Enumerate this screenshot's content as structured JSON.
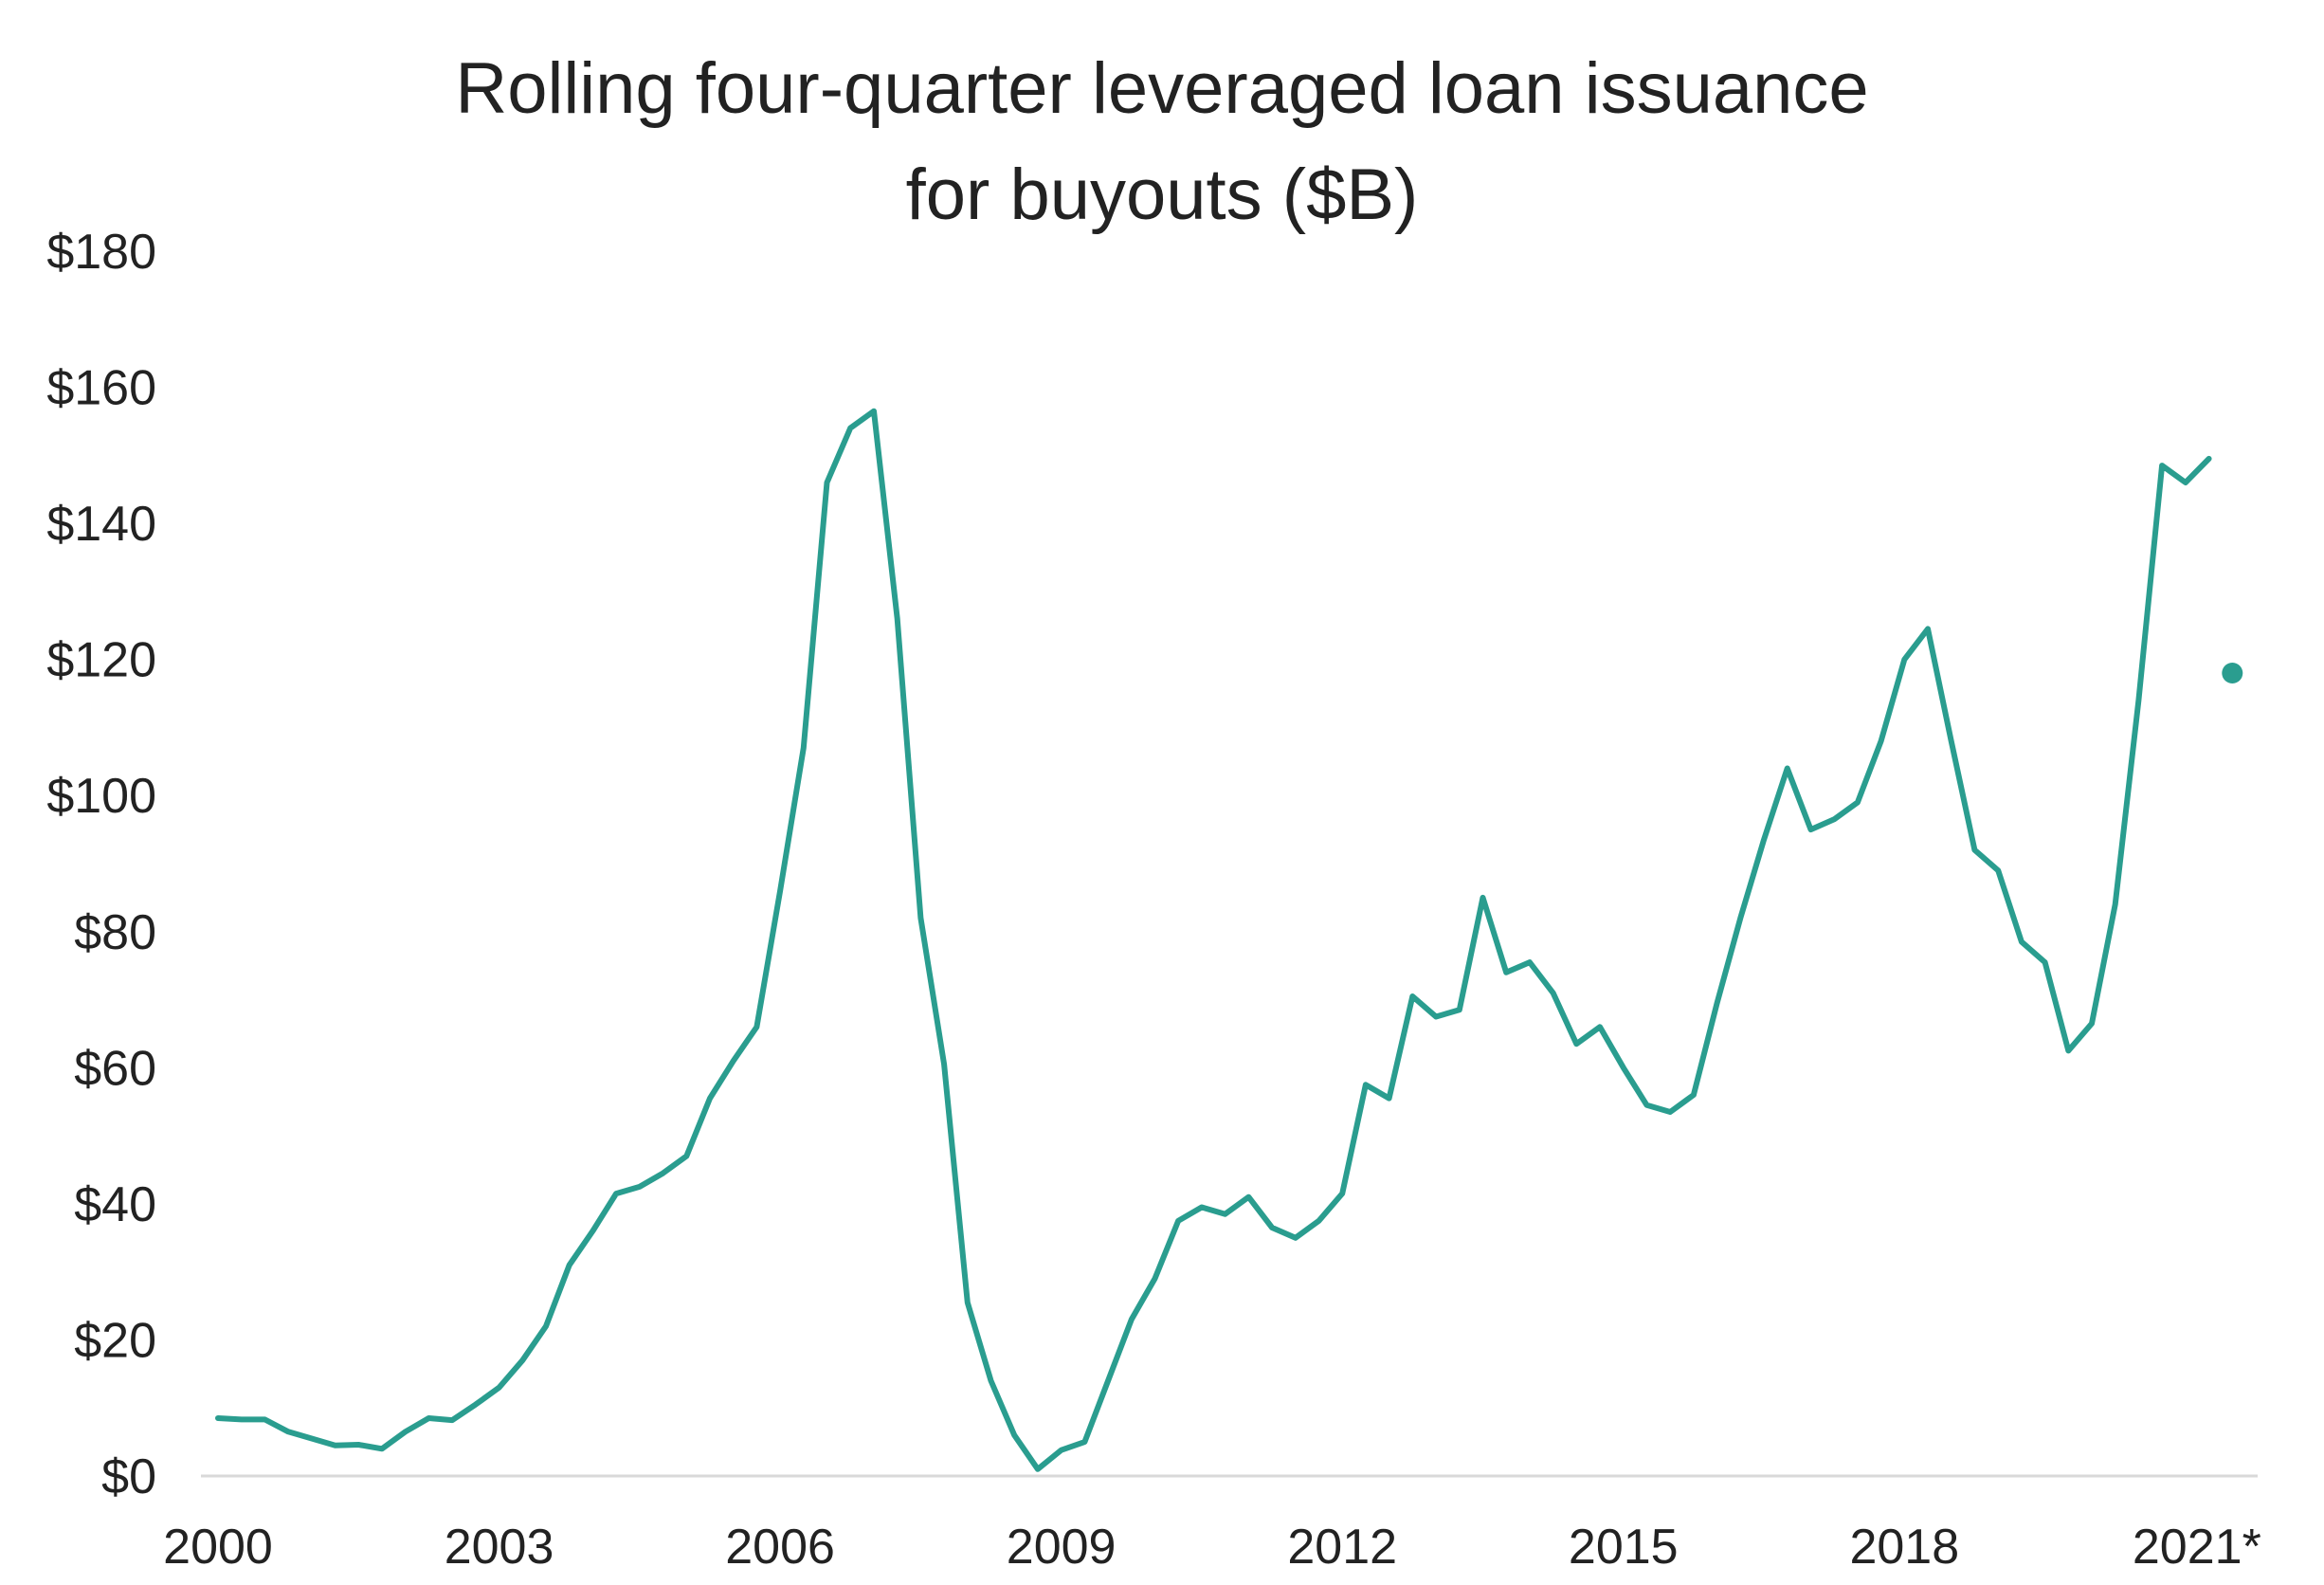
{
  "chart_data": {
    "type": "line",
    "title_lines": [
      "Rolling four-quarter leveraged loan issuance",
      "for buyouts ($B)"
    ],
    "xlabel": "",
    "ylabel": "",
    "ylim": [
      0,
      180
    ],
    "xlim": [
      2000,
      2021.75
    ],
    "y_ticks": [
      0,
      20,
      40,
      60,
      80,
      100,
      120,
      140,
      160,
      180
    ],
    "y_tick_labels": [
      "$0",
      "$20",
      "$40",
      "$60",
      "$80",
      "$100",
      "$120",
      "$140",
      "$160",
      "$180"
    ],
    "x_ticks": [
      2000,
      2003,
      2006,
      2009,
      2012,
      2015,
      2018,
      2021
    ],
    "x_tick_labels": [
      "2000",
      "2003",
      "2006",
      "2009",
      "2012",
      "2015",
      "2018",
      "2021*"
    ],
    "grid": false,
    "color": "#2a9d8f",
    "series": [
      {
        "x": [
          2000.0,
          2000.25,
          2000.5,
          2000.75,
          2001.0,
          2001.25,
          2001.5,
          2001.75,
          2002.0,
          2002.25,
          2002.5,
          2002.75,
          2003.0,
          2003.25,
          2003.5,
          2003.75,
          2004.0,
          2004.25,
          2004.5,
          2004.75,
          2005.0,
          2005.25,
          2005.5,
          2005.75,
          2006.0,
          2006.25,
          2006.5,
          2006.75,
          2007.0,
          2007.25,
          2007.5,
          2007.75,
          2008.0,
          2008.25,
          2008.5,
          2008.75,
          2009.0,
          2009.25,
          2009.5,
          2009.75,
          2010.0,
          2010.25,
          2010.5,
          2010.75,
          2011.0,
          2011.25,
          2011.5,
          2011.75,
          2012.0,
          2012.25,
          2012.5,
          2012.75,
          2013.0,
          2013.25,
          2013.5,
          2013.75,
          2014.0,
          2014.25,
          2014.5,
          2014.75,
          2015.0,
          2015.25,
          2015.5,
          2015.75,
          2016.0,
          2016.25,
          2016.5,
          2016.75,
          2017.0,
          2017.25,
          2017.5,
          2017.75,
          2018.0,
          2018.25,
          2018.5,
          2018.75,
          2019.0,
          2019.25,
          2019.5,
          2019.75,
          2020.0,
          2020.25,
          2020.5,
          2020.75,
          2021.0,
          2021.25
        ],
        "values": [
          8.5,
          8.3,
          8.3,
          6.5,
          5.5,
          4.5,
          4.6,
          4.0,
          6.5,
          8.5,
          8.2,
          10.5,
          13.0,
          17.0,
          22.0,
          31.0,
          36.0,
          41.5,
          42.5,
          44.5,
          47.0,
          55.5,
          61.0,
          66.0,
          86.0,
          107.0,
          146.0,
          154.0,
          156.5,
          126.0,
          82.0,
          60.5,
          25.5,
          14.0,
          6.0,
          1.0,
          3.8,
          5.0,
          14.0,
          23.0,
          29.0,
          37.5,
          39.5,
          38.5,
          41.0,
          36.5,
          35.0,
          37.5,
          41.5,
          57.5,
          55.5,
          70.5,
          67.5,
          68.5,
          85.0,
          74.0,
          75.5,
          71.0,
          63.5,
          66.0,
          60.0,
          54.5,
          53.5,
          56.0,
          69.5,
          82.0,
          93.5,
          104.0,
          95.0,
          96.5,
          99.0,
          108.0,
          120.0,
          124.5,
          108.0,
          92.0,
          89.0,
          78.5,
          75.5,
          62.5,
          66.5,
          84.0,
          114.0,
          148.5,
          146.0,
          149.5
        ]
      }
    ],
    "annotation_point": {
      "x": 2021.5,
      "y": 118
    }
  }
}
